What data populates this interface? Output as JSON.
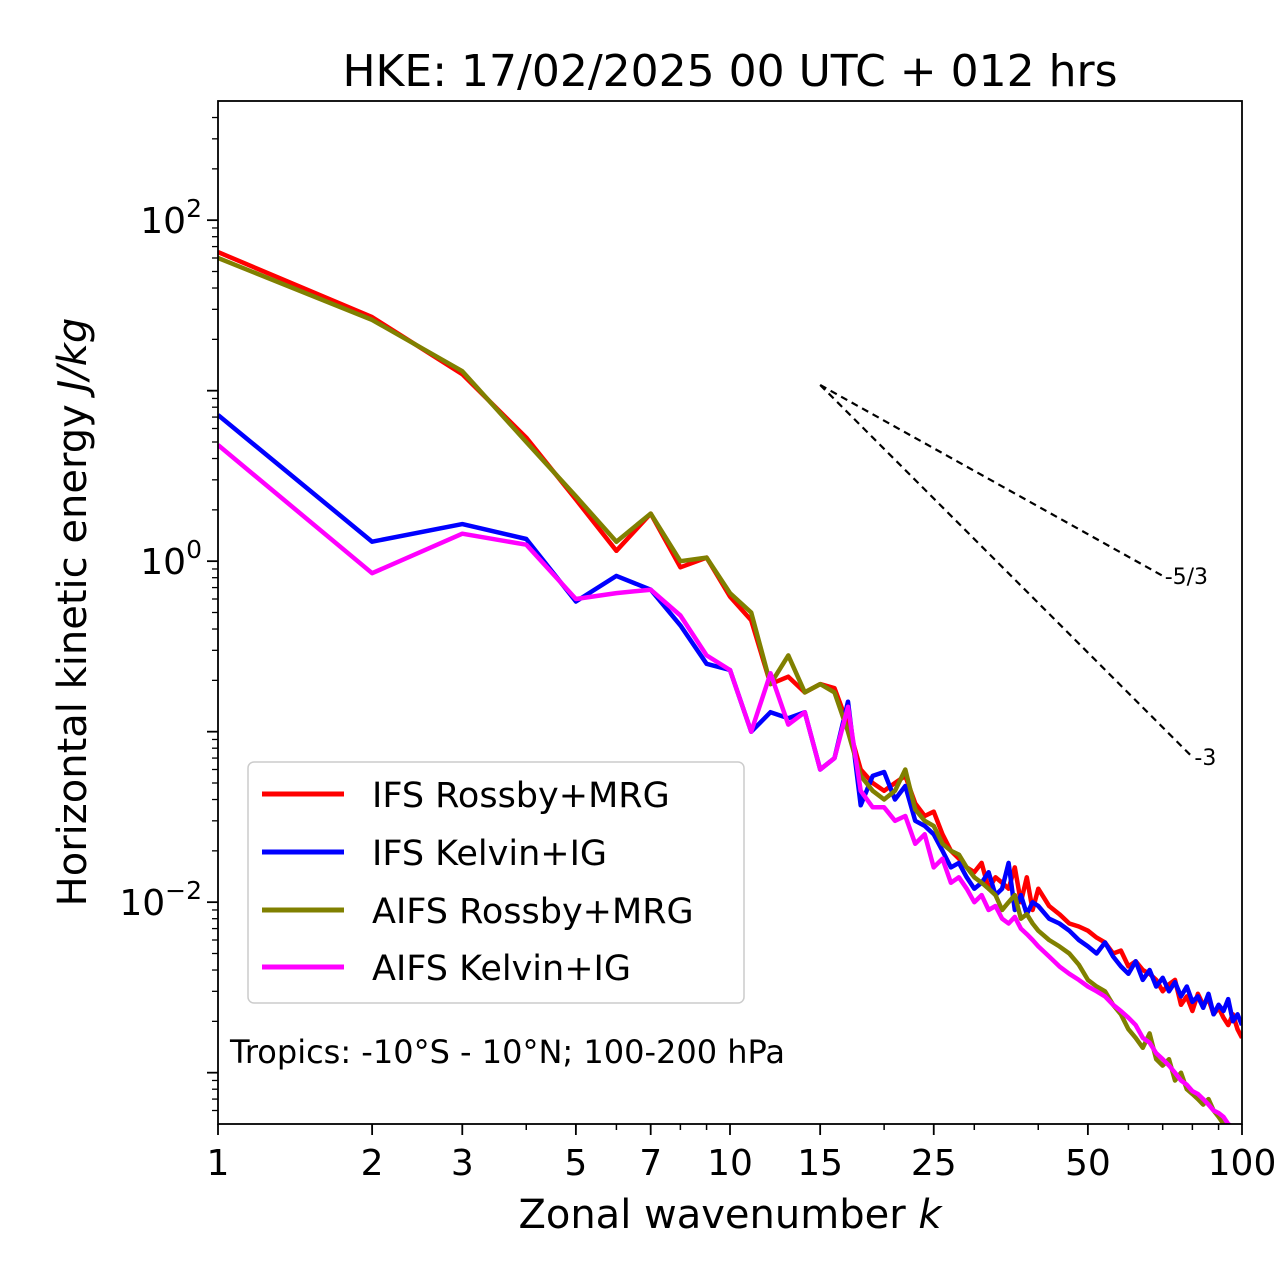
{
  "chart_data": {
    "type": "line",
    "title": "HKE: 17/02/2025 00 UTC + 012 hrs",
    "xlabel": "Zonal wavenumber ",
    "xlabel_italic": "k",
    "ylabel": "Horizontal kinetic energy ",
    "ylabel_italic": "J/kg",
    "xscale": "log",
    "yscale": "log",
    "xlim": [
      1,
      100
    ],
    "ylim": [
      0.0005,
      500
    ],
    "x_ticks": [
      1,
      2,
      3,
      5,
      7,
      10,
      15,
      25,
      50,
      100
    ],
    "x_tick_labels": [
      "1",
      "2",
      "3",
      "5",
      "7",
      "10",
      "15",
      "25",
      "50",
      "100"
    ],
    "y_ticks": [
      100,
      1,
      0.01
    ],
    "y_tick_labels": [
      {
        "base": "10",
        "exp": "2"
      },
      {
        "base": "10",
        "exp": "0"
      },
      {
        "base": "10",
        "exp": "−2"
      }
    ],
    "grid": false,
    "legend_position": "lower-left",
    "annotation": "Tropics: -10°S - 10°N; 100-200 hPa",
    "reference_lines": [
      {
        "label": "-5/3",
        "slope": -1.6667,
        "x": [
          15,
          70
        ],
        "y": [
          10.8,
          0.82
        ],
        "color": "#000000",
        "dash": true
      },
      {
        "label": "-3",
        "slope": -3,
        "x": [
          15,
          80
        ],
        "y": [
          10.8,
          0.071
        ],
        "color": "#000000",
        "dash": true
      }
    ],
    "series": [
      {
        "name": "IFS Rossby+MRG",
        "color": "#ff0000",
        "x": [
          1,
          2,
          3,
          4,
          5,
          6,
          7,
          8,
          9,
          10,
          11,
          12,
          13,
          14,
          15,
          16,
          17,
          18,
          19,
          20,
          21,
          22,
          23,
          24,
          25,
          26,
          27,
          28,
          29,
          30,
          31,
          32,
          33,
          34,
          35,
          36,
          37,
          38,
          39,
          40,
          42,
          44,
          46,
          48,
          50,
          52,
          54,
          56,
          58,
          60,
          62,
          64,
          66,
          68,
          70,
          72,
          74,
          76,
          78,
          80,
          82,
          84,
          86,
          88,
          90,
          92,
          94,
          96,
          98,
          100
        ],
        "y": [
          65,
          27,
          12.5,
          5.3,
          2.3,
          1.15,
          1.9,
          0.92,
          1.05,
          0.62,
          0.45,
          0.19,
          0.21,
          0.17,
          0.19,
          0.18,
          0.11,
          0.06,
          0.05,
          0.045,
          0.05,
          0.055,
          0.038,
          0.032,
          0.034,
          0.025,
          0.02,
          0.018,
          0.016,
          0.015,
          0.017,
          0.012,
          0.014,
          0.013,
          0.012,
          0.016,
          0.01,
          0.014,
          0.009,
          0.012,
          0.0095,
          0.0085,
          0.0075,
          0.0072,
          0.0068,
          0.0062,
          0.0058,
          0.005,
          0.0052,
          0.0042,
          0.0045,
          0.004,
          0.0038,
          0.0035,
          0.003,
          0.0033,
          0.0035,
          0.0025,
          0.0028,
          0.0023,
          0.0029,
          0.0025,
          0.0027,
          0.0022,
          0.0024,
          0.0021,
          0.0019,
          0.0022,
          0.0018,
          0.0016
        ]
      },
      {
        "name": "IFS Kelvin+IG",
        "color": "#0000ff",
        "x": [
          1,
          2,
          3,
          4,
          5,
          6,
          7,
          8,
          9,
          10,
          11,
          12,
          13,
          14,
          15,
          16,
          17,
          18,
          19,
          20,
          21,
          22,
          23,
          24,
          25,
          26,
          27,
          28,
          29,
          30,
          31,
          32,
          33,
          34,
          35,
          36,
          37,
          38,
          39,
          40,
          42,
          44,
          46,
          48,
          50,
          52,
          54,
          56,
          58,
          60,
          62,
          64,
          66,
          68,
          70,
          72,
          74,
          76,
          78,
          80,
          82,
          84,
          86,
          88,
          90,
          92,
          94,
          96,
          98,
          100
        ],
        "y": [
          7.2,
          1.3,
          1.65,
          1.35,
          0.58,
          0.82,
          0.68,
          0.42,
          0.25,
          0.23,
          0.1,
          0.13,
          0.12,
          0.13,
          0.06,
          0.07,
          0.15,
          0.037,
          0.055,
          0.058,
          0.04,
          0.048,
          0.03,
          0.028,
          0.025,
          0.02,
          0.016,
          0.017,
          0.014,
          0.012,
          0.013,
          0.015,
          0.011,
          0.012,
          0.017,
          0.009,
          0.011,
          0.0085,
          0.01,
          0.0095,
          0.008,
          0.0075,
          0.0068,
          0.006,
          0.0055,
          0.005,
          0.0058,
          0.0048,
          0.0042,
          0.0038,
          0.0045,
          0.0035,
          0.004,
          0.0032,
          0.0036,
          0.003,
          0.0034,
          0.0028,
          0.0032,
          0.0026,
          0.0028,
          0.0024,
          0.0029,
          0.0022,
          0.0025,
          0.0023,
          0.0027,
          0.002,
          0.0022,
          0.0019
        ]
      },
      {
        "name": "AIFS Rossby+MRG",
        "color": "#808000",
        "x": [
          1,
          2,
          3,
          4,
          5,
          6,
          7,
          8,
          9,
          10,
          11,
          12,
          13,
          14,
          15,
          16,
          17,
          18,
          19,
          20,
          21,
          22,
          23,
          24,
          25,
          26,
          27,
          28,
          29,
          30,
          31,
          32,
          33,
          34,
          35,
          36,
          37,
          38,
          39,
          40,
          42,
          44,
          46,
          48,
          50,
          52,
          54,
          56,
          58,
          60,
          62,
          64,
          66,
          68,
          70,
          72,
          74,
          76,
          78,
          80,
          82,
          84,
          86,
          88,
          90,
          92,
          94,
          96,
          98
        ],
        "y": [
          60,
          26,
          13,
          5,
          2.4,
          1.3,
          1.9,
          1,
          1.05,
          0.65,
          0.5,
          0.19,
          0.28,
          0.17,
          0.19,
          0.17,
          0.1,
          0.055,
          0.045,
          0.04,
          0.045,
          0.06,
          0.035,
          0.03,
          0.028,
          0.022,
          0.02,
          0.019,
          0.016,
          0.014,
          0.013,
          0.012,
          0.011,
          0.009,
          0.01,
          0.011,
          0.008,
          0.0085,
          0.0075,
          0.0068,
          0.006,
          0.0055,
          0.005,
          0.0043,
          0.0035,
          0.0032,
          0.003,
          0.0025,
          0.0022,
          0.0018,
          0.0016,
          0.0014,
          0.0017,
          0.0012,
          0.0011,
          0.0012,
          0.0009,
          0.001,
          0.0008,
          0.00075,
          0.0007,
          0.00065,
          0.0007,
          0.0006,
          0.00055,
          0.0005,
          0.00045,
          0.0004,
          0.0004
        ]
      },
      {
        "name": "AIFS Kelvin+IG",
        "color": "#ff00ff",
        "x": [
          1,
          2,
          3,
          4,
          5,
          6,
          7,
          8,
          9,
          10,
          11,
          12,
          13,
          14,
          15,
          16,
          17,
          18,
          19,
          20,
          21,
          22,
          23,
          24,
          25,
          26,
          27,
          28,
          29,
          30,
          31,
          32,
          33,
          34,
          35,
          36,
          37,
          38,
          39,
          40,
          42,
          44,
          46,
          48,
          50,
          52,
          54,
          56,
          58,
          60,
          62,
          64,
          66,
          68,
          70,
          72,
          74,
          76,
          78,
          80,
          82,
          84,
          86,
          88,
          90,
          92,
          94,
          96,
          98
        ],
        "y": [
          4.8,
          0.85,
          1.45,
          1.25,
          0.6,
          0.65,
          0.68,
          0.48,
          0.28,
          0.23,
          0.1,
          0.22,
          0.11,
          0.13,
          0.06,
          0.07,
          0.14,
          0.045,
          0.036,
          0.036,
          0.03,
          0.032,
          0.022,
          0.025,
          0.016,
          0.018,
          0.013,
          0.014,
          0.012,
          0.01,
          0.011,
          0.009,
          0.0095,
          0.008,
          0.0075,
          0.0082,
          0.007,
          0.0065,
          0.006,
          0.0055,
          0.0048,
          0.0042,
          0.0038,
          0.0035,
          0.0032,
          0.003,
          0.0028,
          0.0025,
          0.0023,
          0.0021,
          0.0019,
          0.0016,
          0.0015,
          0.0013,
          0.0012,
          0.0011,
          0.001,
          0.0009,
          0.00085,
          0.00078,
          0.00075,
          0.0007,
          0.00065,
          0.0006,
          0.00058,
          0.00055,
          0.0005,
          0.00048,
          0.00045
        ]
      }
    ]
  }
}
